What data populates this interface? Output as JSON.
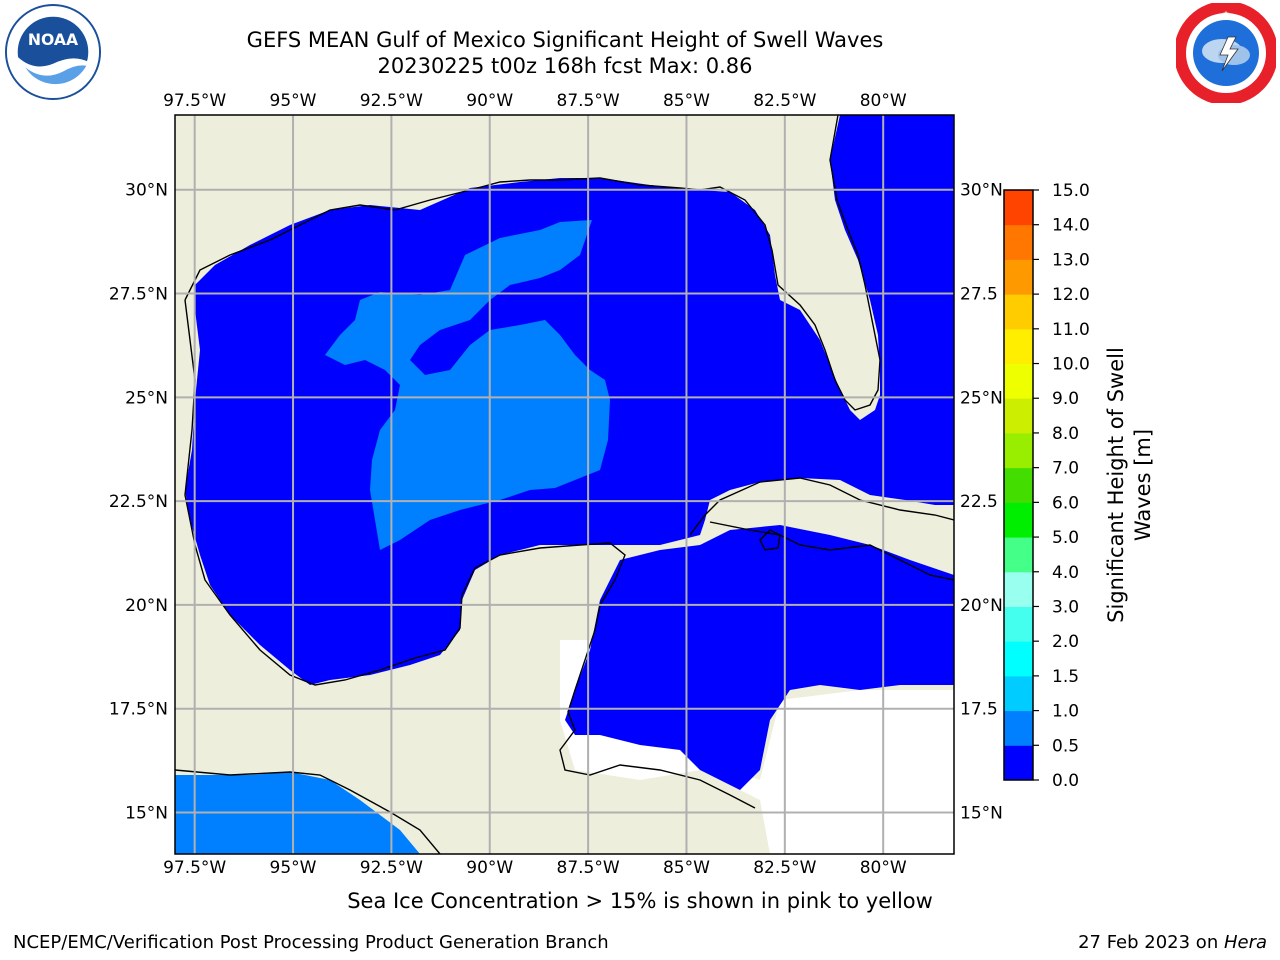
{
  "header": {
    "title_line1": "GEFS MEAN Gulf of Mexico Significant Height of Swell Waves",
    "title_line2": "20230225 t00z 168h fcst   Max: 0.86"
  },
  "logos": {
    "noaa": {
      "icon": "noaa-logo",
      "text": "NOAA",
      "ring_text": "NATIONAL OCEANIC AND ATMOSPHERIC ADMINISTRATION · U.S. DEPARTMENT OF COMMERCE"
    },
    "nws": {
      "icon": "nws-logo",
      "ring_text": "NATIONAL WEATHER SERVICE"
    }
  },
  "map": {
    "lon_labels": [
      "97.5°W",
      "95°W",
      "92.5°W",
      "90°W",
      "87.5°W",
      "85°W",
      "82.5°W",
      "80°W"
    ],
    "lon_values": [
      -97.5,
      -95,
      -92.5,
      -90,
      -87.5,
      -85,
      -82.5,
      -80
    ],
    "lat_labels": [
      "30°N",
      "27.5°N",
      "25°N",
      "22.5°N",
      "20°N",
      "17.5°N",
      "15°N"
    ],
    "right_lat_labels": [
      "30°N",
      "27.5",
      "25°N",
      "22.5",
      "20°N",
      "17.5",
      "15°N"
    ],
    "lat_values": [
      30,
      27.5,
      25,
      22.5,
      20,
      17.5,
      15
    ],
    "lon_range": [
      -98.0,
      -78.2
    ],
    "lat_range": [
      14.0,
      31.8
    ],
    "colors": {
      "land": "#eeeedd",
      "ocean_low": "#0000ff",
      "ocean_mid": "#0080ff",
      "grid": "#b0b0b0",
      "undefined": "#ffffff"
    }
  },
  "colorbar": {
    "label": "Significant Height of Swell Waves [m]",
    "ticks": [
      "0.0",
      "0.5",
      "1.0",
      "1.5",
      "2.0",
      "3.0",
      "4.0",
      "5.0",
      "6.0",
      "7.0",
      "8.0",
      "9.0",
      "10.0",
      "11.0",
      "12.0",
      "13.0",
      "14.0",
      "15.0"
    ],
    "colors": [
      "#0000ff",
      "#0080ff",
      "#00ccff",
      "#00ffff",
      "#44ffee",
      "#99ffee",
      "#44ff88",
      "#00ee00",
      "#44dd00",
      "#99ee00",
      "#ccee00",
      "#eeff00",
      "#ffee00",
      "#ffcc00",
      "#ff9900",
      "#ff7700",
      "#ff4400",
      "#ff0000"
    ]
  },
  "footer": {
    "ice_note": "Sea Ice Concentration > 15% is shown in pink to yellow",
    "credit": "NCEP/EMC/Verification Post Processing Product Generation Branch",
    "date": "27 Feb 2023 on ",
    "host": "Hera"
  }
}
